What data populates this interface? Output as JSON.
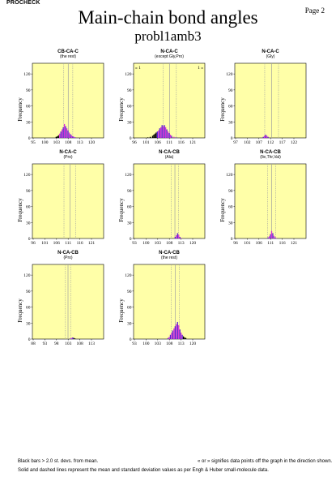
{
  "header": {
    "app": "PROCHECK",
    "page": "Page  2"
  },
  "title": "Main-chain bond angles",
  "subtitle": "probl1amb3",
  "footer": {
    "left": "Black bars > 2.0 st. devs. from mean.",
    "right": "« or » signifies data points off the graph in the direction shown.",
    "line2": "Solid and dashed lines represent the mean and standard deviation values as per Engh & Huber small-molecule data."
  },
  "colors": {
    "panel_bg": "#ffffa8",
    "bar": "#5a1fd6",
    "bar_alt": "#d62fd6",
    "outlier": "#000000",
    "mean_line": "#a0a0a0"
  },
  "chart_data": [
    {
      "type": "bar",
      "title": "CB-CA-C",
      "subtitle": "(the rest)",
      "ylabel": "Frequency",
      "xlim": [
        95,
        125
      ],
      "ylim": [
        0,
        140
      ],
      "xticks": [
        "95",
        "100",
        "103",
        "108",
        "113",
        "120"
      ],
      "yticks": [
        0,
        30,
        60,
        90,
        120
      ],
      "mean": 110.1,
      "sd": 1.9,
      "bars": [
        [
          105.0,
          2
        ],
        [
          105.5,
          3
        ],
        [
          106.0,
          5
        ],
        [
          106.5,
          8
        ],
        [
          107.0,
          12
        ],
        [
          107.5,
          16
        ],
        [
          108.0,
          20
        ],
        [
          108.5,
          26
        ],
        [
          109.0,
          22
        ],
        [
          109.5,
          18
        ],
        [
          110.0,
          14
        ],
        [
          110.5,
          10
        ],
        [
          111.0,
          7
        ],
        [
          111.5,
          5
        ],
        [
          112.0,
          3
        ],
        [
          112.5,
          2
        ],
        [
          113.0,
          1
        ]
      ],
      "offscale": null
    },
    {
      "type": "bar",
      "title": "N-CA-C",
      "subtitle": "(except Gly,Pro)",
      "ylabel": "Frequency",
      "xlim": [
        96,
        126
      ],
      "ylim": [
        0,
        140
      ],
      "xticks": [
        "96",
        "101",
        "106",
        "111",
        "116",
        "121"
      ],
      "yticks": [
        0,
        30,
        60,
        90,
        120
      ],
      "mean": 111.2,
      "sd": 2.8,
      "bars": [
        [
          102.0,
          1
        ],
        [
          103.0,
          2
        ],
        [
          104.0,
          4
        ],
        [
          104.5,
          6
        ],
        [
          105.0,
          8
        ],
        [
          105.5,
          10
        ],
        [
          106.0,
          12
        ],
        [
          106.5,
          14
        ],
        [
          107.0,
          18
        ],
        [
          107.5,
          20
        ],
        [
          108.0,
          24
        ],
        [
          108.5,
          22
        ],
        [
          109.0,
          24
        ],
        [
          109.5,
          20
        ],
        [
          110.0,
          16
        ],
        [
          110.5,
          12
        ],
        [
          111.0,
          9
        ],
        [
          111.5,
          6
        ],
        [
          112.0,
          4
        ],
        [
          113.0,
          2
        ],
        [
          114.0,
          1
        ]
      ],
      "offscale": {
        "left": "1",
        "right": "1"
      }
    },
    {
      "type": "bar",
      "title": "N-CA-C",
      "subtitle": "(Gly)",
      "ylabel": "Frequency",
      "xlim": [
        97,
        127
      ],
      "ylim": [
        0,
        140
      ],
      "xticks": [
        "97",
        "102",
        "107",
        "112",
        "117",
        "122"
      ],
      "yticks": [
        0,
        30,
        60,
        90,
        120
      ],
      "mean": 112.5,
      "sd": 2.9,
      "bars": [
        [
          109.0,
          2
        ],
        [
          109.5,
          4
        ],
        [
          110.0,
          6
        ],
        [
          110.5,
          4
        ],
        [
          111.0,
          2
        ]
      ],
      "offscale": null
    },
    {
      "type": "bar",
      "title": "N-CA-C",
      "subtitle": "(Pro)",
      "ylabel": "Frequency",
      "xlim": [
        96,
        126
      ],
      "ylim": [
        0,
        140
      ],
      "xticks": [
        "96",
        "101",
        "106",
        "111",
        "116",
        "121"
      ],
      "yticks": [
        0,
        30,
        60,
        90,
        120
      ],
      "mean": 111.8,
      "sd": 2.5,
      "bars": [],
      "offscale": null
    },
    {
      "type": "bar",
      "title": "N-CA-CB",
      "subtitle": "(Ala)",
      "ylabel": "Frequency",
      "xlim": [
        93,
        123
      ],
      "ylim": [
        0,
        140
      ],
      "xticks": [
        "93",
        "100",
        "103",
        "108",
        "113",
        "120"
      ],
      "yticks": [
        0,
        30,
        60,
        90,
        120
      ],
      "mean": 110.4,
      "sd": 1.5,
      "bars": [
        [
          110.5,
          3
        ],
        [
          111.0,
          6
        ],
        [
          111.5,
          10
        ],
        [
          112.0,
          7
        ],
        [
          112.5,
          3
        ],
        [
          113.0,
          1
        ]
      ],
      "offscale": null
    },
    {
      "type": "bar",
      "title": "N-CA-CB",
      "subtitle": "(Ile,Thr,Val)",
      "ylabel": "Frequency",
      "xlim": [
        96,
        126
      ],
      "ylim": [
        0,
        140
      ],
      "xticks": [
        "96",
        "101",
        "106",
        "111",
        "116",
        "121"
      ],
      "yticks": [
        0,
        30,
        60,
        90,
        120
      ],
      "mean": 111.5,
      "sd": 1.7,
      "bars": [
        [
          110.0,
          2
        ],
        [
          110.5,
          4
        ],
        [
          111.0,
          8
        ],
        [
          111.5,
          14
        ],
        [
          112.0,
          10
        ],
        [
          112.5,
          5
        ],
        [
          113.0,
          2
        ],
        [
          113.5,
          1
        ]
      ],
      "offscale": null
    },
    {
      "type": "bar",
      "title": "N-CA-CB",
      "subtitle": "(Pro)",
      "ylabel": "Frequency",
      "xlim": [
        88,
        118
      ],
      "ylim": [
        0,
        140
      ],
      "xticks": [
        "88",
        "93",
        "98",
        "103",
        "108",
        "113"
      ],
      "yticks": [
        0,
        30,
        60,
        90,
        120
      ],
      "mean": 103.0,
      "sd": 1.1,
      "bars": [
        [
          104.0,
          1
        ],
        [
          104.5,
          2
        ],
        [
          105.0,
          3
        ],
        [
          105.5,
          2
        ],
        [
          106.0,
          1
        ]
      ],
      "offscale": null
    },
    {
      "type": "bar",
      "title": "N-CA-CB",
      "subtitle": "(the rest)",
      "ylabel": "Frequency",
      "xlim": [
        93,
        123
      ],
      "ylim": [
        0,
        140
      ],
      "xticks": [
        "93",
        "100",
        "103",
        "108",
        "113",
        "120"
      ],
      "yticks": [
        0,
        30,
        60,
        90,
        120
      ],
      "mean": 110.5,
      "sd": 1.7,
      "bars": [
        [
          107.5,
          2
        ],
        [
          108.0,
          4
        ],
        [
          108.5,
          8
        ],
        [
          109.0,
          12
        ],
        [
          109.5,
          16
        ],
        [
          110.0,
          20
        ],
        [
          110.5,
          24
        ],
        [
          111.0,
          28
        ],
        [
          111.5,
          32
        ],
        [
          112.0,
          26
        ],
        [
          112.5,
          18
        ],
        [
          113.0,
          12
        ],
        [
          113.5,
          8
        ],
        [
          114.0,
          5
        ],
        [
          114.5,
          3
        ],
        [
          115.0,
          2
        ]
      ],
      "offscale": null
    }
  ]
}
